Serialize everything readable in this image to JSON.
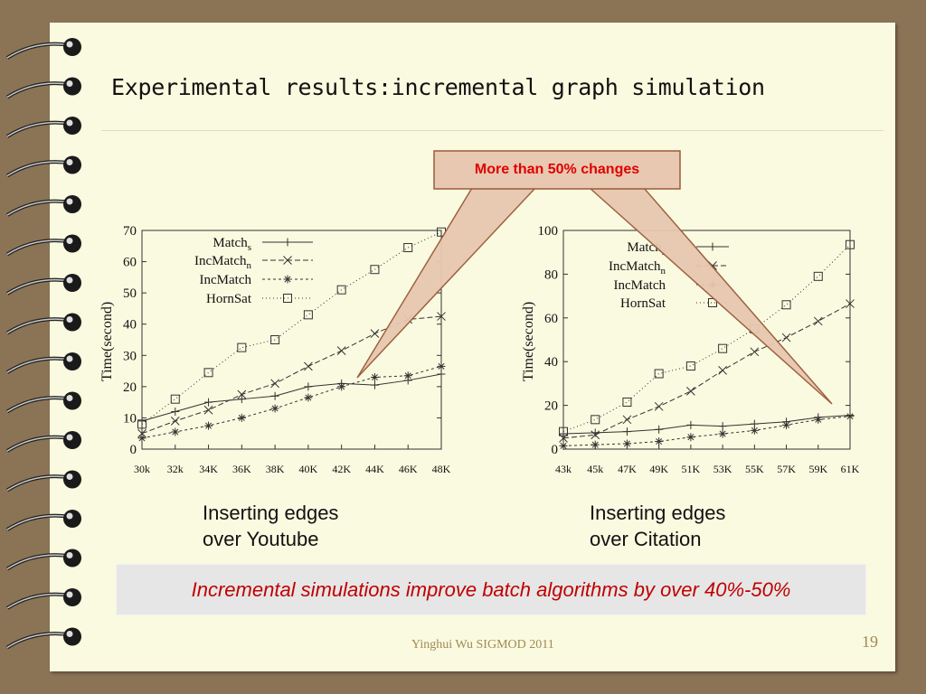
{
  "slide": {
    "title": "Experimental results:incremental graph simulation",
    "callout": "More than 50% changes",
    "summary": "Incremental simulations improve batch algorithms by over 40%-50%",
    "footer": "Yinghui Wu SIGMOD 2011",
    "page_number": "19",
    "captions": [
      {
        "line1": "Inserting edges",
        "line2": "over Youtube"
      },
      {
        "line1": "Inserting edges",
        "line2": "over Citation"
      }
    ]
  },
  "colors": {
    "background": "#8b7355",
    "page": "#fafae0",
    "callout_fill": "#e8c8b0",
    "callout_stroke": "#9a5a3a",
    "callout_text": "#e00000",
    "summary_text": "#c00000"
  },
  "chart_data": [
    {
      "type": "line",
      "ylabel": "Time(second)",
      "ylim": [
        0,
        70
      ],
      "yticks": [
        "0",
        "10",
        "20",
        "30",
        "40",
        "50",
        "60",
        "70"
      ],
      "categories": [
        "30k",
        "32k",
        "34K",
        "36K",
        "38K",
        "40K",
        "42K",
        "44K",
        "46K",
        "48K"
      ],
      "series": [
        {
          "name": "Match",
          "sub": "s",
          "marker": "plus",
          "dash": "",
          "values": [
            9,
            12,
            15,
            16,
            17,
            20,
            21,
            20.5,
            22,
            24
          ]
        },
        {
          "name": "IncMatch",
          "sub": "n",
          "marker": "x",
          "dash": "6,3",
          "values": [
            5,
            9,
            12.5,
            17.5,
            21,
            26.5,
            31.5,
            37,
            41.5,
            42.5
          ]
        },
        {
          "name": "IncMatch",
          "sub": "",
          "marker": "star",
          "dash": "3,3",
          "values": [
            3.5,
            5.5,
            7.5,
            10,
            13,
            16.5,
            20,
            23,
            23.5,
            26.5
          ]
        },
        {
          "name": "HornSat",
          "sub": "",
          "marker": "square",
          "dash": "1,3",
          "values": [
            8,
            16,
            24.5,
            32.5,
            35,
            43,
            51,
            57.5,
            64.5,
            69.5
          ]
        }
      ]
    },
    {
      "type": "line",
      "ylabel": "Time(second)",
      "ylim": [
        0,
        100
      ],
      "yticks": [
        "0",
        "20",
        "40",
        "60",
        "80",
        "100"
      ],
      "categories": [
        "43k",
        "45k",
        "47K",
        "49K",
        "51K",
        "53K",
        "55K",
        "57K",
        "59K",
        "61K"
      ],
      "series": [
        {
          "name": "Match",
          "sub": "s",
          "marker": "plus",
          "dash": "",
          "values": [
            7,
            7.5,
            8,
            9,
            11,
            10.5,
            11.5,
            12.5,
            14.5,
            15.5
          ]
        },
        {
          "name": "IncMatch",
          "sub": "n",
          "marker": "x",
          "dash": "6,3",
          "values": [
            5,
            6.5,
            13.5,
            19.5,
            26.5,
            36,
            44.5,
            51,
            58.5,
            66.5
          ]
        },
        {
          "name": "IncMatch",
          "sub": "",
          "marker": "star",
          "dash": "3,3",
          "values": [
            1.5,
            2,
            2.5,
            3.5,
            5.5,
            7,
            8.5,
            11,
            13.5,
            15
          ]
        },
        {
          "name": "HornSat",
          "sub": "",
          "marker": "square",
          "dash": "1,3",
          "values": [
            8,
            13.5,
            21.5,
            34.5,
            38,
            46,
            55,
            66,
            79,
            93.5
          ]
        }
      ]
    }
  ]
}
